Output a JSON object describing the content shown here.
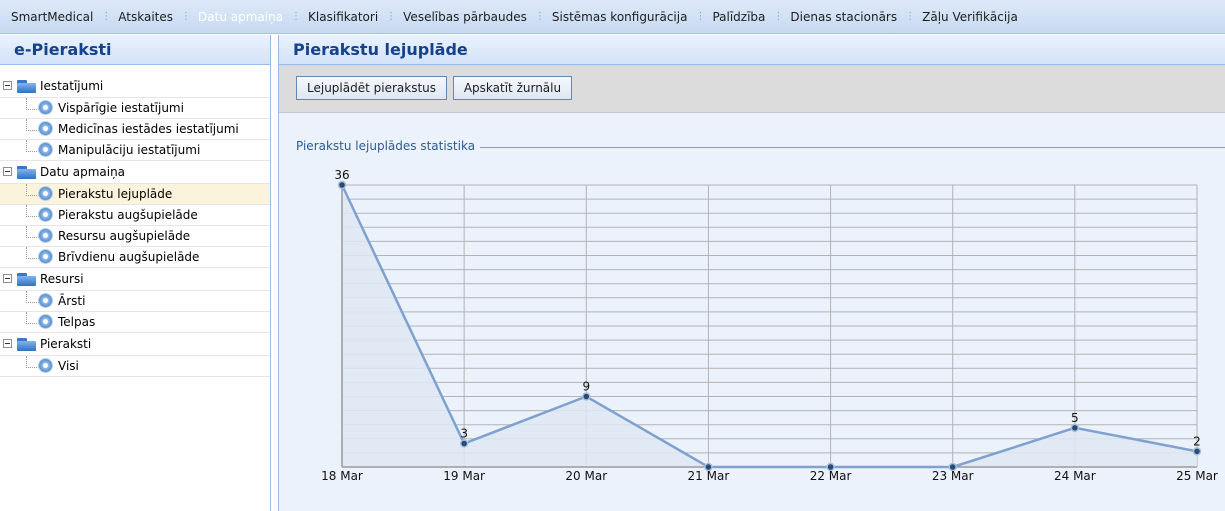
{
  "topbar": {
    "items": [
      {
        "label": "SmartMedical",
        "active": false
      },
      {
        "label": "Atskaites",
        "active": false
      },
      {
        "label": "Datu apmaiņa",
        "active": true
      },
      {
        "label": "Klasifikatori",
        "active": false
      },
      {
        "label": "Veselības pārbaudes",
        "active": false
      },
      {
        "label": "Sistēmas konfigurācija",
        "active": false
      },
      {
        "label": "Palīdzība",
        "active": false
      },
      {
        "label": "Dienas stacionārs",
        "active": false
      },
      {
        "label": "Zāļu Verifikācija",
        "active": false
      }
    ]
  },
  "sidebar": {
    "title": "e-Pieraksti",
    "groups": [
      {
        "label": "Iestatījumi",
        "items": [
          {
            "label": "Vispārīgie iestatījumi",
            "selected": false
          },
          {
            "label": "Medicīnas iestādes iestatījumi",
            "selected": false
          },
          {
            "label": "Manipulāciju iestatījumi",
            "selected": false
          }
        ]
      },
      {
        "label": "Datu apmaiņa",
        "items": [
          {
            "label": "Pierakstu lejuplāde",
            "selected": true
          },
          {
            "label": "Pierakstu augšupielāde",
            "selected": false
          },
          {
            "label": "Resursu augšupielāde",
            "selected": false
          },
          {
            "label": "Brīvdienu augšupielāde",
            "selected": false
          }
        ]
      },
      {
        "label": "Resursi",
        "items": [
          {
            "label": "Ārsti",
            "selected": false
          },
          {
            "label": "Telpas",
            "selected": false
          }
        ]
      },
      {
        "label": "Pieraksti",
        "items": [
          {
            "label": "Visi",
            "selected": false
          }
        ]
      }
    ]
  },
  "main": {
    "title": "Pierakstu lejuplāde",
    "buttons": {
      "download": "Lejuplādēt pierakstus",
      "view_log": "Apskatīt žurnālu"
    },
    "fieldset_title": "Pierakstu lejuplādes statistika"
  },
  "chart_data": {
    "type": "area",
    "title": "",
    "xlabel": "",
    "ylabel": "",
    "categories": [
      "18 Mar",
      "19 Mar",
      "20 Mar",
      "21 Mar",
      "22 Mar",
      "23 Mar",
      "24 Mar",
      "25 Mar"
    ],
    "values": [
      36,
      3,
      9,
      0,
      0,
      0,
      5,
      2
    ],
    "data_labels": [
      "36",
      "3",
      "9",
      "",
      "",
      "",
      "5",
      "2"
    ],
    "ylim": [
      0,
      36
    ],
    "y_gridlines": 20,
    "grid": true,
    "line_color": "#7fa1cf",
    "fill_color": "#dfe7f3",
    "marker_color": "#2b4a72"
  },
  "colors": {
    "accent": "#15428b",
    "border": "#99bbe8"
  }
}
